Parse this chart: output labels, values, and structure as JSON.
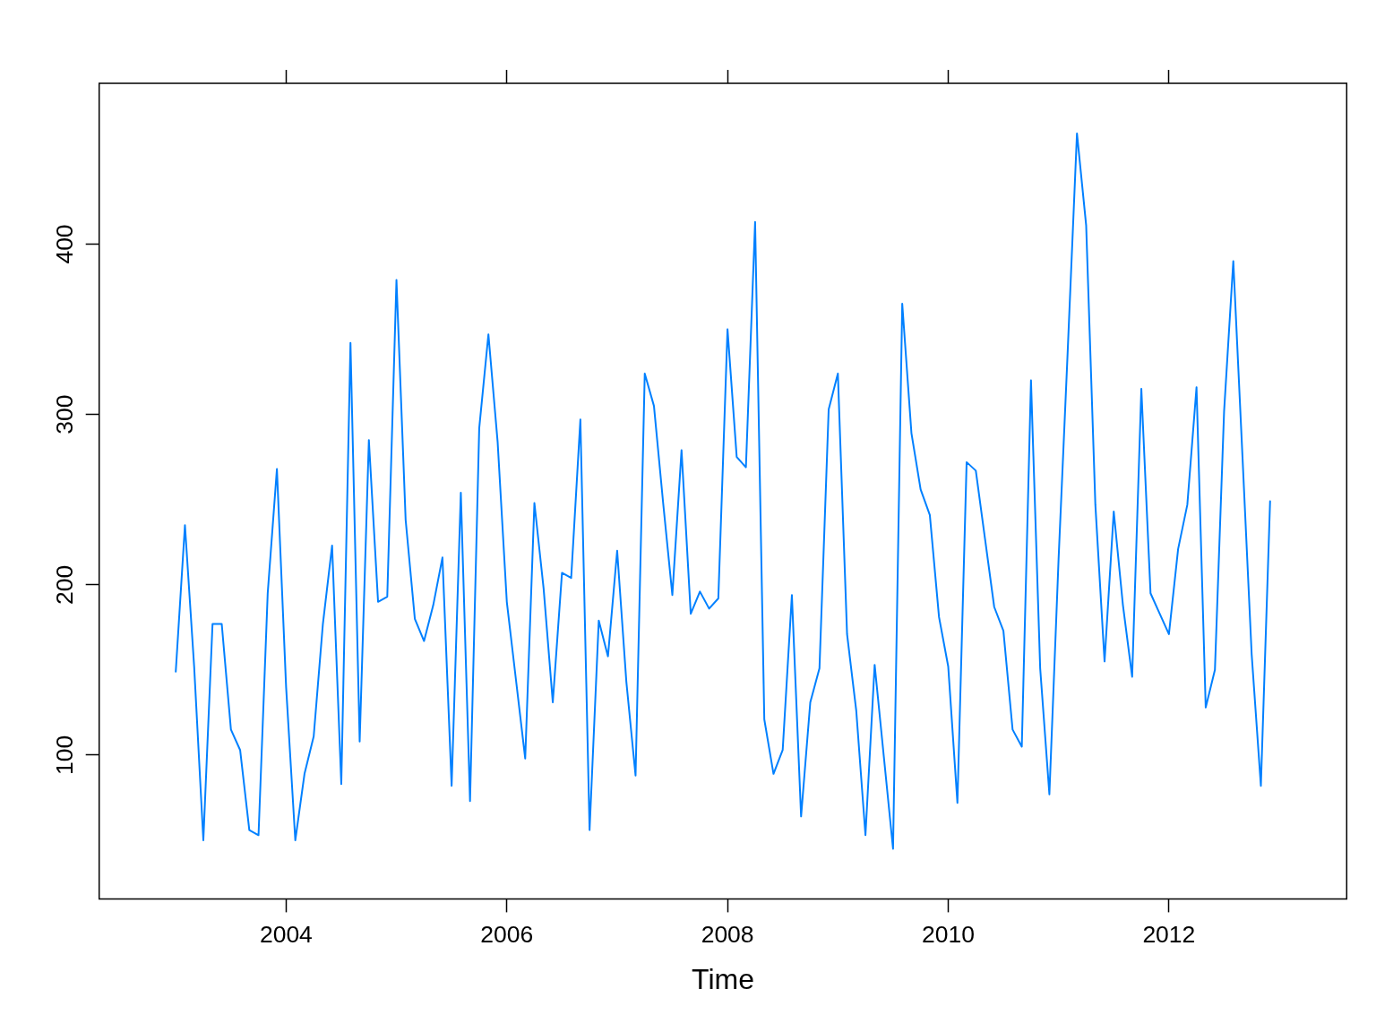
{
  "chart_data": {
    "type": "line",
    "xlabel": "Time",
    "x": [
      2003,
      2003.0833,
      2003.1667,
      2003.25,
      2003.3333,
      2003.4167,
      2003.5,
      2003.5833,
      2003.6667,
      2003.75,
      2003.8333,
      2003.9167,
      2004,
      2004.0833,
      2004.1667,
      2004.25,
      2004.3333,
      2004.4167,
      2004.5,
      2004.5833,
      2004.6667,
      2004.75,
      2004.8333,
      2004.9167,
      2005,
      2005.0833,
      2005.1667,
      2005.25,
      2005.3333,
      2005.4167,
      2005.5,
      2005.5833,
      2005.6667,
      2005.75,
      2005.8333,
      2005.9167,
      2006,
      2006.0833,
      2006.1667,
      2006.25,
      2006.3333,
      2006.4167,
      2006.5,
      2006.5833,
      2006.6667,
      2006.75,
      2006.8333,
      2006.9167,
      2007,
      2007.0833,
      2007.1667,
      2007.25,
      2007.3333,
      2007.4167,
      2007.5,
      2007.5833,
      2007.6667,
      2007.75,
      2007.8333,
      2007.9167,
      2008,
      2008.0833,
      2008.1667,
      2008.25,
      2008.3333,
      2008.4167,
      2008.5,
      2008.5833,
      2008.6667,
      2008.75,
      2008.8333,
      2008.9167,
      2009,
      2009.0833,
      2009.1667,
      2009.25,
      2009.3333,
      2009.4167,
      2009.5,
      2009.5833,
      2009.6667,
      2009.75,
      2009.8333,
      2009.9167,
      2010,
      2010.0833,
      2010.1667,
      2010.25,
      2010.3333,
      2010.4167,
      2010.5,
      2010.5833,
      2010.6667,
      2010.75,
      2010.8333,
      2010.9167,
      2011,
      2011.0833,
      2011.1667,
      2011.25,
      2011.3333,
      2011.4167,
      2011.5,
      2011.5833,
      2011.6667,
      2011.75,
      2011.8333,
      2011.9167,
      2012,
      2012.0833,
      2012.1667,
      2012.25,
      2012.3333,
      2012.4167,
      2012.5,
      2012.5833,
      2012.6667,
      2012.75,
      2012.8333,
      2012.9167
    ],
    "values": [
      149,
      235,
      152,
      50,
      177,
      177,
      115,
      103,
      56,
      53,
      195,
      268,
      140,
      50,
      89,
      111,
      177,
      223,
      83,
      342,
      108,
      285,
      190,
      193,
      379,
      238,
      180,
      167,
      188,
      216,
      82,
      254,
      73,
      292,
      347,
      284,
      190,
      144,
      98,
      248,
      198,
      131,
      207,
      204,
      297,
      56,
      179,
      158,
      220,
      143,
      88,
      324,
      305,
      248,
      194,
      279,
      183,
      196,
      186,
      192,
      350,
      275,
      269,
      413,
      121,
      89,
      103,
      194,
      64,
      131,
      151,
      303,
      324,
      171,
      126,
      53,
      153,
      99,
      45,
      365,
      289,
      256,
      241,
      181,
      152,
      72,
      272,
      267,
      227,
      187,
      173,
      115,
      105,
      320,
      151,
      77,
      215,
      338,
      465,
      411,
      247,
      155,
      243,
      188,
      146,
      315,
      195,
      183,
      171,
      221,
      247,
      316,
      128,
      150,
      302,
      390,
      275,
      159,
      82,
      249
    ],
    "color": "#0080ff",
    "xlim": [
      2002.306,
      2013.611
    ],
    "xticks": [
      2004,
      2006,
      2008,
      2010,
      2012
    ],
    "ylim": [
      15.6,
      494.4
    ],
    "yticks": [
      100,
      200,
      300,
      400
    ],
    "grid": false,
    "legend": false,
    "marker": "none",
    "line_style": "solid"
  }
}
